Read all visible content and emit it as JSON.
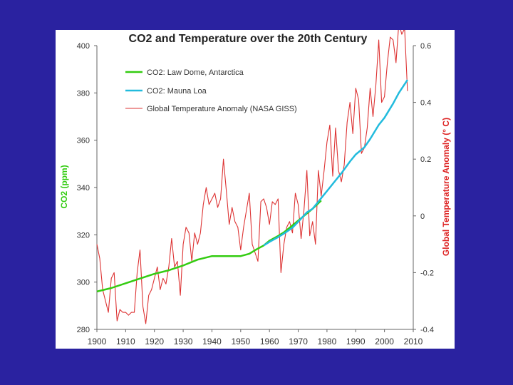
{
  "chart_data": {
    "type": "line",
    "title": "CO2 and Temperature over the 20th Century",
    "xlabel": "",
    "ylabel": "CO2 (ppm)",
    "y2label": "Global Temperature Anomaly (° C)",
    "xlim": [
      1900,
      2010
    ],
    "ylim": [
      280,
      400
    ],
    "y2lim": [
      -0.4,
      0.6
    ],
    "x_ticks": [
      1900,
      1910,
      1920,
      1930,
      1940,
      1950,
      1960,
      1970,
      1980,
      1990,
      2000,
      2010
    ],
    "y_ticks": [
      280,
      300,
      320,
      340,
      360,
      380,
      400
    ],
    "y2_ticks": [
      -0.4,
      -0.2,
      0,
      0.2,
      0.4,
      0.6
    ],
    "y2_tick_labels": [
      "-0.4",
      "-0.2",
      "0",
      "0.2",
      "0.4",
      "0.6"
    ],
    "legend_position": "top-left",
    "grid": false,
    "colors": {
      "law_dome": "#33cc11",
      "mauna_loa": "#22bbdd",
      "temperature": "#dd3333",
      "co2_axis_label": "#33cc11",
      "temp_axis_label": "#dd2222",
      "axis": "#666666",
      "title": "#222222"
    },
    "series": [
      {
        "name": "CO2: Law Dome, Antarctica",
        "axis": "left",
        "x": [
          1900,
          1905,
          1910,
          1915,
          1920,
          1925,
          1930,
          1935,
          1940,
          1945,
          1950,
          1953,
          1955,
          1958,
          1960,
          1963,
          1965,
          1968,
          1970,
          1972,
          1975,
          1978
        ],
        "values": [
          296,
          297.5,
          299.5,
          301.5,
          303.5,
          305,
          307,
          309.5,
          311,
          311,
          311,
          312,
          313.5,
          315.5,
          317.5,
          319.5,
          321,
          324,
          326,
          328,
          331,
          334.5
        ]
      },
      {
        "name": "CO2: Mauna Loa",
        "axis": "left",
        "x": [
          1958,
          1960,
          1963,
          1965,
          1968,
          1970,
          1973,
          1975,
          1978,
          1980,
          1983,
          1985,
          1988,
          1990,
          1993,
          1995,
          1998,
          2000,
          2003,
          2005,
          2008
        ],
        "values": [
          315.5,
          317,
          319,
          320.5,
          323,
          325.5,
          329.5,
          331,
          335.5,
          338.5,
          343,
          346,
          351,
          354,
          357,
          360.5,
          366.5,
          369.5,
          375.5,
          380,
          385.5
        ]
      },
      {
        "name": "Global Temperature Anomaly (NASA GISS)",
        "axis": "right",
        "x": [
          1900,
          1901,
          1902,
          1903,
          1904,
          1905,
          1906,
          1907,
          1908,
          1909,
          1910,
          1911,
          1912,
          1913,
          1914,
          1915,
          1916,
          1917,
          1918,
          1919,
          1920,
          1921,
          1922,
          1923,
          1924,
          1925,
          1926,
          1927,
          1928,
          1929,
          1930,
          1931,
          1932,
          1933,
          1934,
          1935,
          1936,
          1937,
          1938,
          1939,
          1940,
          1941,
          1942,
          1943,
          1944,
          1945,
          1946,
          1947,
          1948,
          1949,
          1950,
          1951,
          1952,
          1953,
          1954,
          1955,
          1956,
          1957,
          1958,
          1959,
          1960,
          1961,
          1962,
          1963,
          1964,
          1965,
          1966,
          1967,
          1968,
          1969,
          1970,
          1971,
          1972,
          1973,
          1974,
          1975,
          1976,
          1977,
          1978,
          1979,
          1980,
          1981,
          1982,
          1983,
          1984,
          1985,
          1986,
          1987,
          1988,
          1989,
          1990,
          1991,
          1992,
          1993,
          1994,
          1995,
          1996,
          1997,
          1998,
          1999,
          2000,
          2001,
          2002,
          2003,
          2004,
          2005,
          2006,
          2007,
          2008
        ],
        "values": [
          -0.1,
          -0.15,
          -0.26,
          -0.3,
          -0.34,
          -0.22,
          -0.2,
          -0.37,
          -0.33,
          -0.34,
          -0.34,
          -0.35,
          -0.34,
          -0.34,
          -0.2,
          -0.12,
          -0.32,
          -0.38,
          -0.28,
          -0.26,
          -0.22,
          -0.18,
          -0.26,
          -0.22,
          -0.24,
          -0.18,
          -0.08,
          -0.18,
          -0.16,
          -0.28,
          -0.1,
          -0.04,
          -0.06,
          -0.16,
          -0.06,
          -0.1,
          -0.06,
          0.04,
          0.1,
          0.04,
          0.06,
          0.08,
          0.03,
          0.06,
          0.2,
          0.09,
          -0.03,
          0.03,
          -0.02,
          -0.04,
          -0.12,
          -0.04,
          0.02,
          0.08,
          -0.1,
          -0.13,
          -0.16,
          0.05,
          0.06,
          0.03,
          -0.03,
          0.05,
          0.04,
          0.06,
          -0.2,
          -0.1,
          -0.04,
          -0.02,
          -0.06,
          0.08,
          0.04,
          -0.08,
          0.02,
          0.16,
          -0.07,
          -0.02,
          -0.1,
          0.16,
          0.07,
          0.16,
          0.26,
          0.32,
          0.14,
          0.31,
          0.16,
          0.12,
          0.18,
          0.33,
          0.4,
          0.29,
          0.45,
          0.41,
          0.22,
          0.24,
          0.31,
          0.45,
          0.35,
          0.46,
          0.62,
          0.4,
          0.42,
          0.54,
          0.63,
          0.62,
          0.54,
          0.68,
          0.64,
          0.66,
          0.44
        ]
      }
    ]
  }
}
